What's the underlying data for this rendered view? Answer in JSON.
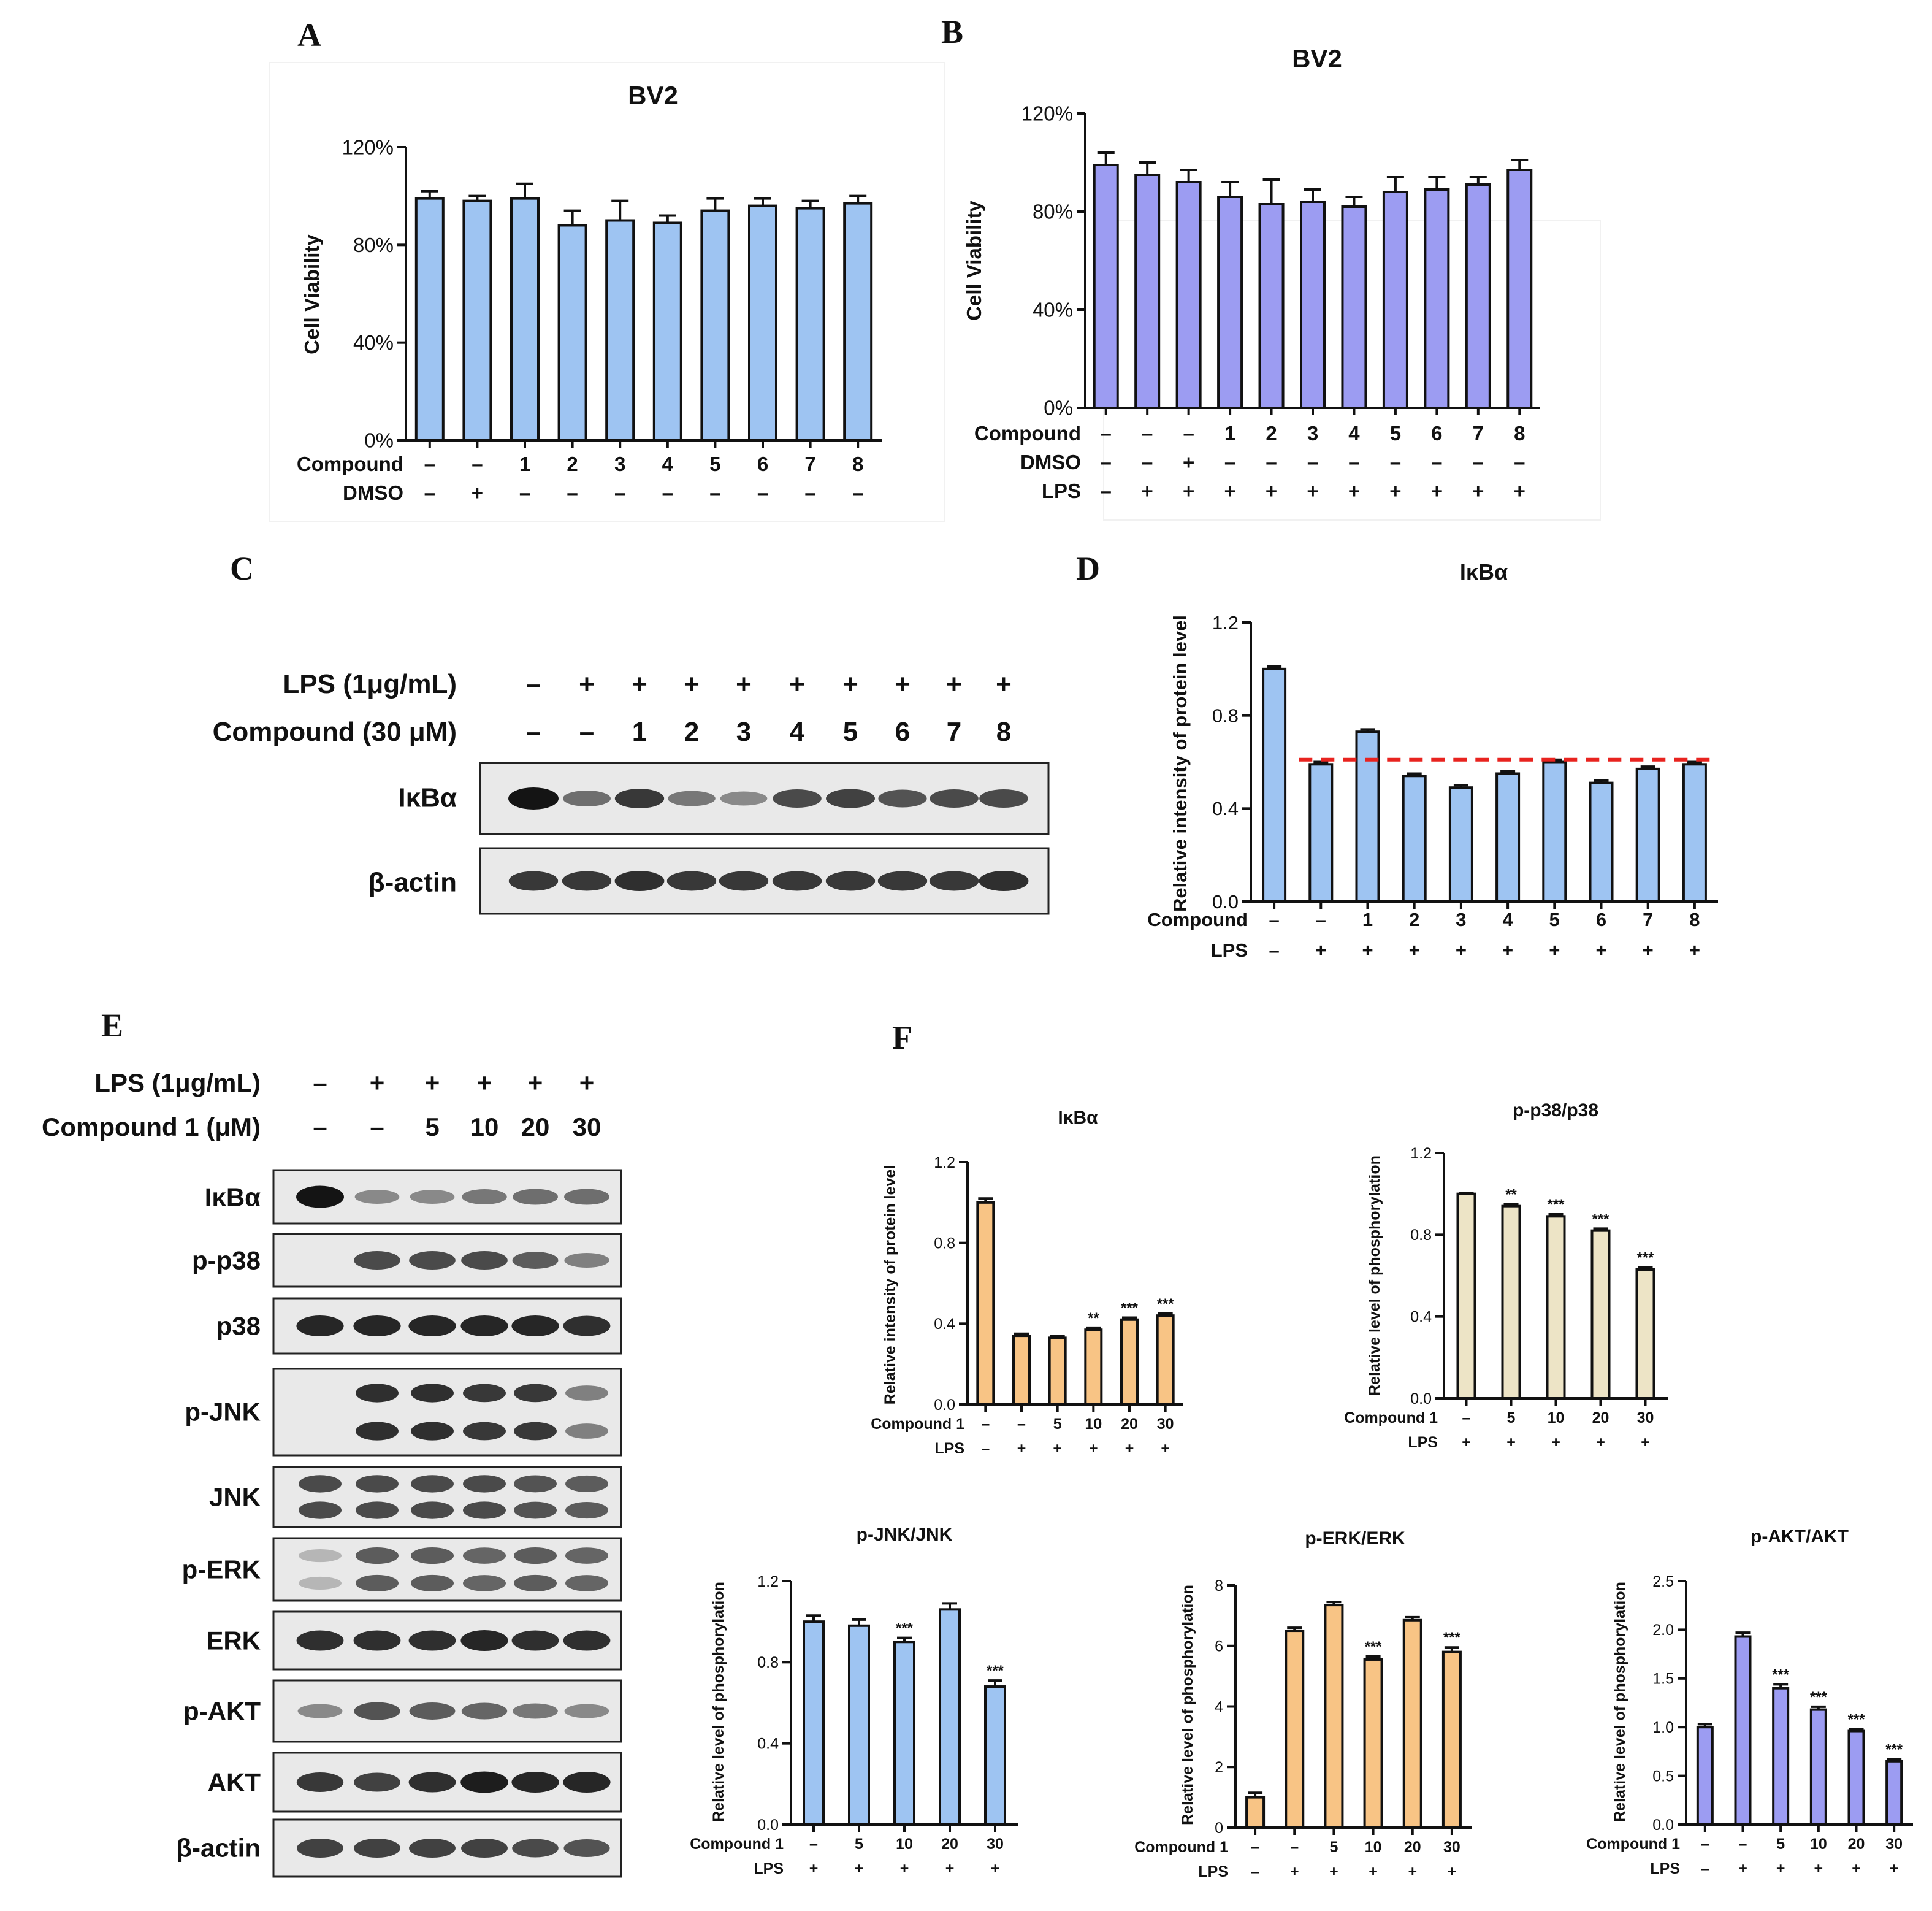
{
  "panel_labels": [
    "A",
    "B",
    "C",
    "D",
    "E",
    "F"
  ],
  "colors": {
    "blue": "#9ec4f2",
    "purple": "#9c9cf2",
    "orange": "#f8c485",
    "cream": "#ede4c6",
    "axis": "#111111",
    "refline": "#e8231f"
  },
  "chart_data": [
    {
      "id": "A",
      "type": "bar",
      "title": "BV2",
      "ylabel": "Cell Viability",
      "ylim": [
        0,
        120
      ],
      "yticks": [
        "0%",
        "40%",
        "80%",
        "120%"
      ],
      "values": [
        99,
        98,
        99,
        88,
        90,
        89,
        94,
        96,
        95,
        97
      ],
      "errors": [
        3,
        2,
        6,
        6,
        8,
        3,
        5,
        3,
        3,
        3
      ],
      "rows": [
        {
          "label": "Compound",
          "values": [
            "–",
            "–",
            "1",
            "2",
            "3",
            "4",
            "5",
            "6",
            "7",
            "8"
          ]
        },
        {
          "label": "DMSO",
          "values": [
            "–",
            "+",
            "–",
            "–",
            "–",
            "–",
            "–",
            "–",
            "–",
            "–"
          ]
        }
      ]
    },
    {
      "id": "B",
      "type": "bar",
      "title": "BV2",
      "ylabel": "Cell Viability",
      "ylim": [
        0,
        120
      ],
      "yticks": [
        "0%",
        "40%",
        "80%",
        "120%"
      ],
      "values": [
        99,
        95,
        92,
        86,
        83,
        84,
        82,
        88,
        89,
        91,
        97
      ],
      "errors": [
        5,
        5,
        5,
        6,
        10,
        5,
        4,
        6,
        5,
        3,
        4
      ],
      "rows": [
        {
          "label": "Compound",
          "values": [
            "–",
            "–",
            "–",
            "1",
            "2",
            "3",
            "4",
            "5",
            "6",
            "7",
            "8"
          ]
        },
        {
          "label": "DMSO",
          "values": [
            "–",
            "–",
            "+",
            "–",
            "–",
            "–",
            "–",
            "–",
            "–",
            "–",
            "–"
          ]
        },
        {
          "label": "LPS",
          "values": [
            "–",
            "+",
            "+",
            "+",
            "+",
            "+",
            "+",
            "+",
            "+",
            "+",
            "+"
          ]
        }
      ]
    },
    {
      "id": "D",
      "type": "bar",
      "title": "IκBα",
      "ylabel": "Relative intensity of protein level",
      "ylim": [
        0,
        1.2
      ],
      "yticks": [
        "0.0",
        "0.4",
        "0.8",
        "1.2"
      ],
      "values": [
        1.0,
        0.59,
        0.73,
        0.54,
        0.49,
        0.55,
        0.6,
        0.51,
        0.57,
        0.59
      ],
      "errors": [
        0.01,
        0.01,
        0.01,
        0.01,
        0.01,
        0.01,
        0.01,
        0.01,
        0.01,
        0.01
      ],
      "reference_line": 0.61,
      "rows": [
        {
          "label": "Compound",
          "values": [
            "–",
            "–",
            "1",
            "2",
            "3",
            "4",
            "5",
            "6",
            "7",
            "8"
          ]
        },
        {
          "label": "LPS",
          "values": [
            "–",
            "+",
            "+",
            "+",
            "+",
            "+",
            "+",
            "+",
            "+",
            "+"
          ]
        }
      ]
    },
    {
      "id": "F1",
      "type": "bar",
      "title": "IκBα",
      "ylabel": "Relative intensity of protein level",
      "ylim": [
        0,
        1.2
      ],
      "yticks": [
        "0.0",
        "0.4",
        "0.8",
        "1.2"
      ],
      "values": [
        1.0,
        0.34,
        0.33,
        0.37,
        0.42,
        0.44
      ],
      "errors": [
        0.02,
        0.01,
        0.01,
        0.01,
        0.01,
        0.01
      ],
      "signif": [
        "",
        "",
        "",
        "**",
        "***",
        "***"
      ],
      "rows": [
        {
          "label": "Compound 1",
          "values": [
            "–",
            "–",
            "5",
            "10",
            "20",
            "30"
          ]
        },
        {
          "label": "LPS",
          "values": [
            "–",
            "+",
            "+",
            "+",
            "+",
            "+"
          ]
        }
      ]
    },
    {
      "id": "F2",
      "type": "bar",
      "title": "p-p38/p38",
      "ylabel": "Relative  level of phosphorylation",
      "ylim": [
        0,
        1.2
      ],
      "yticks": [
        "0.0",
        "0.4",
        "0.8",
        "1.2"
      ],
      "values": [
        1.0,
        0.94,
        0.89,
        0.82,
        0.63
      ],
      "errors": [
        0.005,
        0.01,
        0.01,
        0.01,
        0.01
      ],
      "signif": [
        "",
        "**",
        "***",
        "***",
        "***"
      ],
      "rows": [
        {
          "label": "Compound 1",
          "values": [
            "–",
            "5",
            "10",
            "20",
            "30"
          ]
        },
        {
          "label": "LPS",
          "values": [
            "+",
            "+",
            "+",
            "+",
            "+"
          ]
        }
      ]
    },
    {
      "id": "F3",
      "type": "bar",
      "title": "p-JNK/JNK",
      "ylabel": "Relative  level of phosphorylation",
      "ylim": [
        0,
        1.2
      ],
      "yticks": [
        "0.0",
        "0.4",
        "0.8",
        "1.2"
      ],
      "values": [
        1.0,
        0.98,
        0.9,
        1.06,
        0.68
      ],
      "errors": [
        0.03,
        0.03,
        0.02,
        0.03,
        0.03
      ],
      "signif": [
        "",
        "",
        "***",
        "",
        "***"
      ],
      "rows": [
        {
          "label": "Compound 1",
          "values": [
            "–",
            "5",
            "10",
            "20",
            "30"
          ]
        },
        {
          "label": "LPS",
          "values": [
            "+",
            "+",
            "+",
            "+",
            "+"
          ]
        }
      ]
    },
    {
      "id": "F4",
      "type": "bar",
      "title": "p-ERK/ERK",
      "ylabel": "Relative  level of phosphorylation",
      "ylim": [
        0,
        8
      ],
      "yticks": [
        "0",
        "2",
        "4",
        "6",
        "8"
      ],
      "values": [
        1.0,
        6.5,
        7.35,
        5.55,
        6.85,
        5.8
      ],
      "errors": [
        0.15,
        0.1,
        0.1,
        0.1,
        0.1,
        0.15
      ],
      "signif": [
        "",
        "",
        "",
        "***",
        "",
        "***"
      ],
      "rows": [
        {
          "label": "Compound 1",
          "values": [
            "–",
            "–",
            "5",
            "10",
            "20",
            "30"
          ]
        },
        {
          "label": "LPS",
          "values": [
            "–",
            "+",
            "+",
            "+",
            "+",
            "+"
          ]
        }
      ]
    },
    {
      "id": "F5",
      "type": "bar",
      "title": "p-AKT/AKT",
      "ylabel": "Relative  level of phosphorylation",
      "ylim": [
        0,
        2.5
      ],
      "yticks": [
        "0.0",
        "0.5",
        "1.0",
        "1.5",
        "2.0",
        "2.5"
      ],
      "values": [
        1.0,
        1.93,
        1.4,
        1.18,
        0.96,
        0.65
      ],
      "errors": [
        0.03,
        0.04,
        0.04,
        0.03,
        0.02,
        0.02
      ],
      "signif": [
        "",
        "",
        "***",
        "***",
        "***",
        "***"
      ],
      "rows": [
        {
          "label": "Compound 1",
          "values": [
            "–",
            "–",
            "5",
            "10",
            "20",
            "30"
          ]
        },
        {
          "label": "LPS",
          "values": [
            "–",
            "+",
            "+",
            "+",
            "+",
            "+"
          ]
        }
      ]
    }
  ],
  "blots": {
    "C": {
      "header_rows": [
        {
          "label": "LPS (1μg/mL)",
          "values": [
            "–",
            "+",
            "+",
            "+",
            "+",
            "+",
            "+",
            "+",
            "+",
            "+"
          ]
        },
        {
          "label": "Compound (30 μM)",
          "values": [
            "–",
            "–",
            "1",
            "2",
            "3",
            "4",
            "5",
            "6",
            "7",
            "8"
          ]
        }
      ],
      "proteins": [
        {
          "name": "IκBα",
          "intensities": [
            1.0,
            0.5,
            0.8,
            0.45,
            0.35,
            0.7,
            0.75,
            0.65,
            0.7,
            0.7
          ]
        },
        {
          "name": "β-actin",
          "intensities": [
            0.8,
            0.8,
            0.85,
            0.8,
            0.8,
            0.8,
            0.8,
            0.8,
            0.8,
            0.85
          ]
        }
      ]
    },
    "E": {
      "header_rows": [
        {
          "label": "LPS (1μg/mL)",
          "values": [
            "–",
            "+",
            "+",
            "+",
            "+",
            "+"
          ]
        },
        {
          "label": "Compound 1 (μM)",
          "values": [
            "–",
            "–",
            "5",
            "10",
            "20",
            "30"
          ]
        }
      ],
      "proteins": [
        {
          "name": "IκBα",
          "intensities": [
            1.0,
            0.35,
            0.35,
            0.45,
            0.5,
            0.5
          ]
        },
        {
          "name": "p-p38",
          "intensities": [
            0,
            0.7,
            0.7,
            0.7,
            0.6,
            0.4
          ]
        },
        {
          "name": "p38",
          "intensities": [
            0.9,
            0.9,
            0.9,
            0.9,
            0.9,
            0.85
          ]
        },
        {
          "name": "p-JNK",
          "intensities": [
            0,
            0.85,
            0.85,
            0.8,
            0.8,
            0.4
          ]
        },
        {
          "name": "JNK",
          "intensities": [
            0.7,
            0.7,
            0.7,
            0.7,
            0.65,
            0.6
          ]
        },
        {
          "name": "p-ERK",
          "intensities": [
            0.1,
            0.6,
            0.6,
            0.55,
            0.6,
            0.55
          ]
        },
        {
          "name": "ERK",
          "intensities": [
            0.85,
            0.85,
            0.85,
            0.9,
            0.85,
            0.85
          ]
        },
        {
          "name": "p-AKT",
          "intensities": [
            0.35,
            0.65,
            0.6,
            0.55,
            0.45,
            0.35
          ]
        },
        {
          "name": "AKT",
          "intensities": [
            0.8,
            0.75,
            0.85,
            0.95,
            0.9,
            0.9
          ]
        },
        {
          "name": "β-actin",
          "intensities": [
            0.75,
            0.75,
            0.75,
            0.75,
            0.7,
            0.65
          ]
        }
      ]
    }
  }
}
